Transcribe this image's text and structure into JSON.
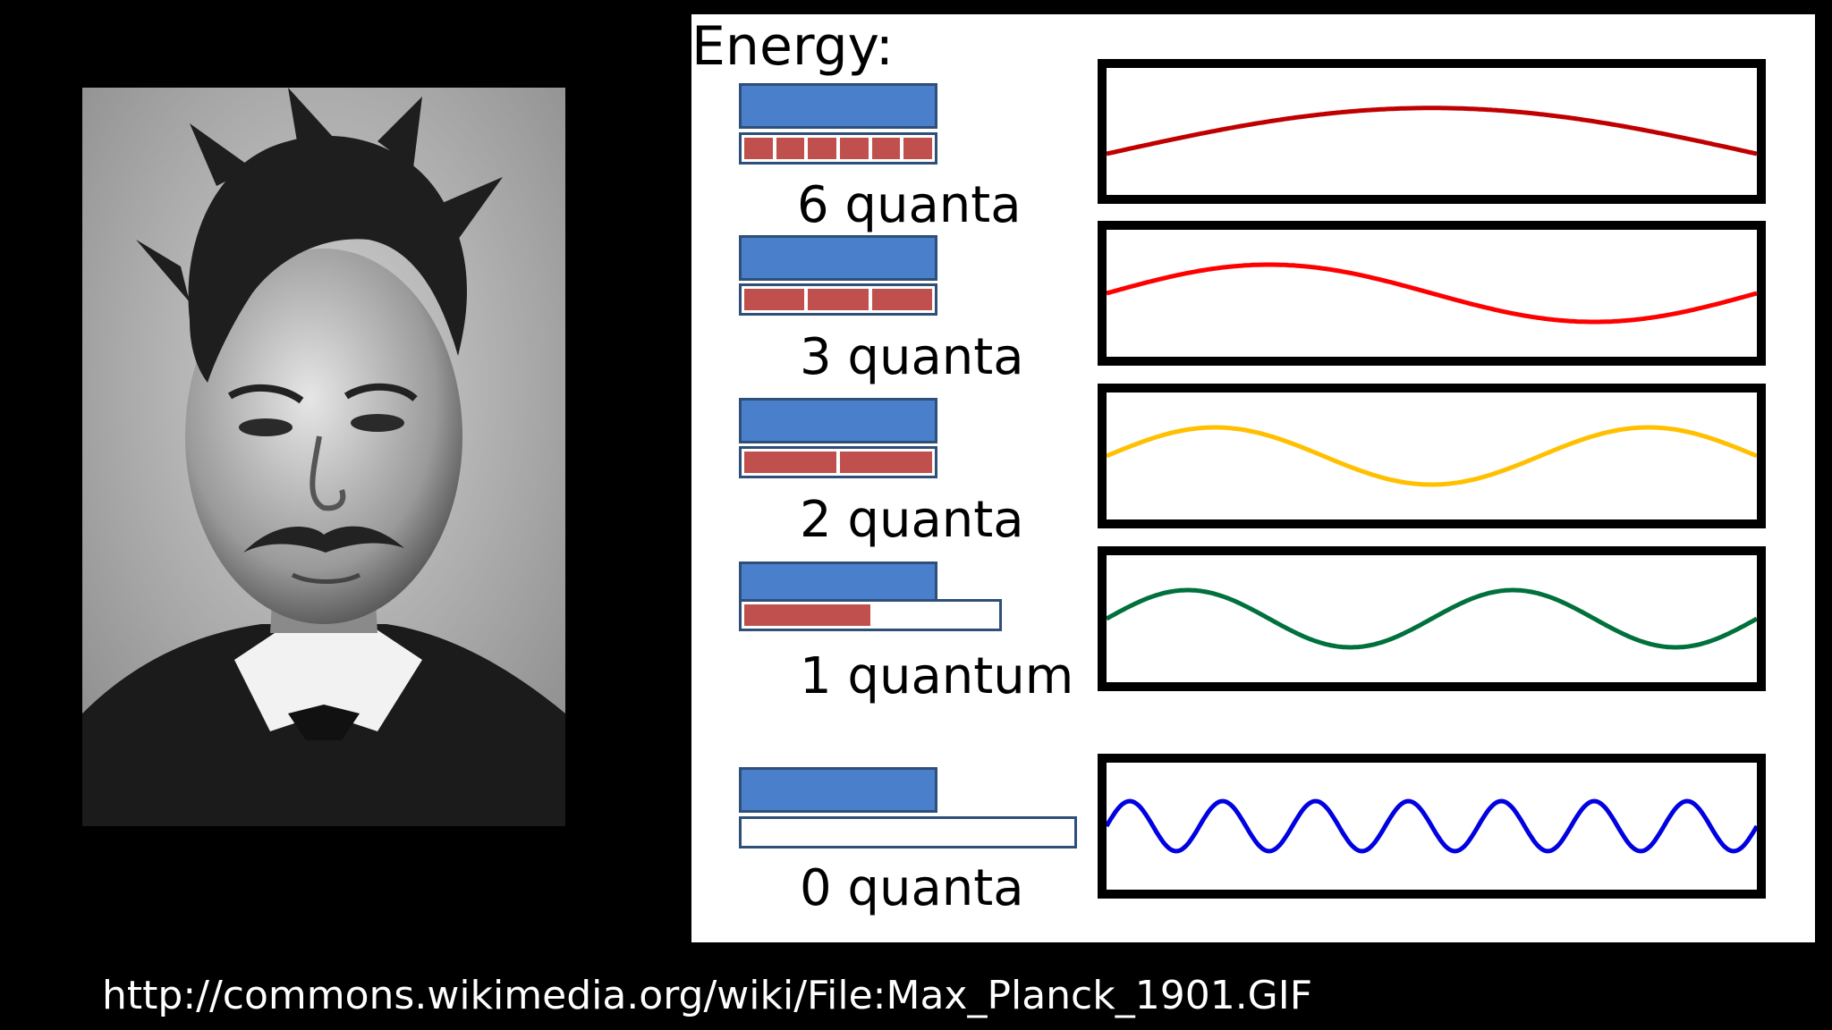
{
  "portrait": {
    "icon": "portrait-photo"
  },
  "panel": {
    "energy_label": "Energy:",
    "rows": [
      {
        "label": "6 quanta",
        "quanta": 6,
        "capacity_fraction": 1.0,
        "wave_color": "#c00000",
        "wave_cycles": 0.5
      },
      {
        "label": "3 quanta",
        "quanta": 3,
        "capacity_fraction": 1.0,
        "wave_color": "#ff0000",
        "wave_cycles": 1.0
      },
      {
        "label": "2 quanta",
        "quanta": 2,
        "capacity_fraction": 1.0,
        "wave_color": "#ffc000",
        "wave_cycles": 1.5
      },
      {
        "label": "1 quantum",
        "quanta": 1,
        "capacity_fraction": 0.5,
        "wave_color": "#00703c",
        "wave_cycles": 2.0
      },
      {
        "label": "0 quanta",
        "quanta": 0,
        "capacity_fraction": 0.0,
        "wave_color": "#0000e0",
        "wave_cycles": 7.0
      }
    ]
  },
  "source_url": "http://commons.wikimedia.org/wiki/File:Max_Planck_1901.GIF"
}
